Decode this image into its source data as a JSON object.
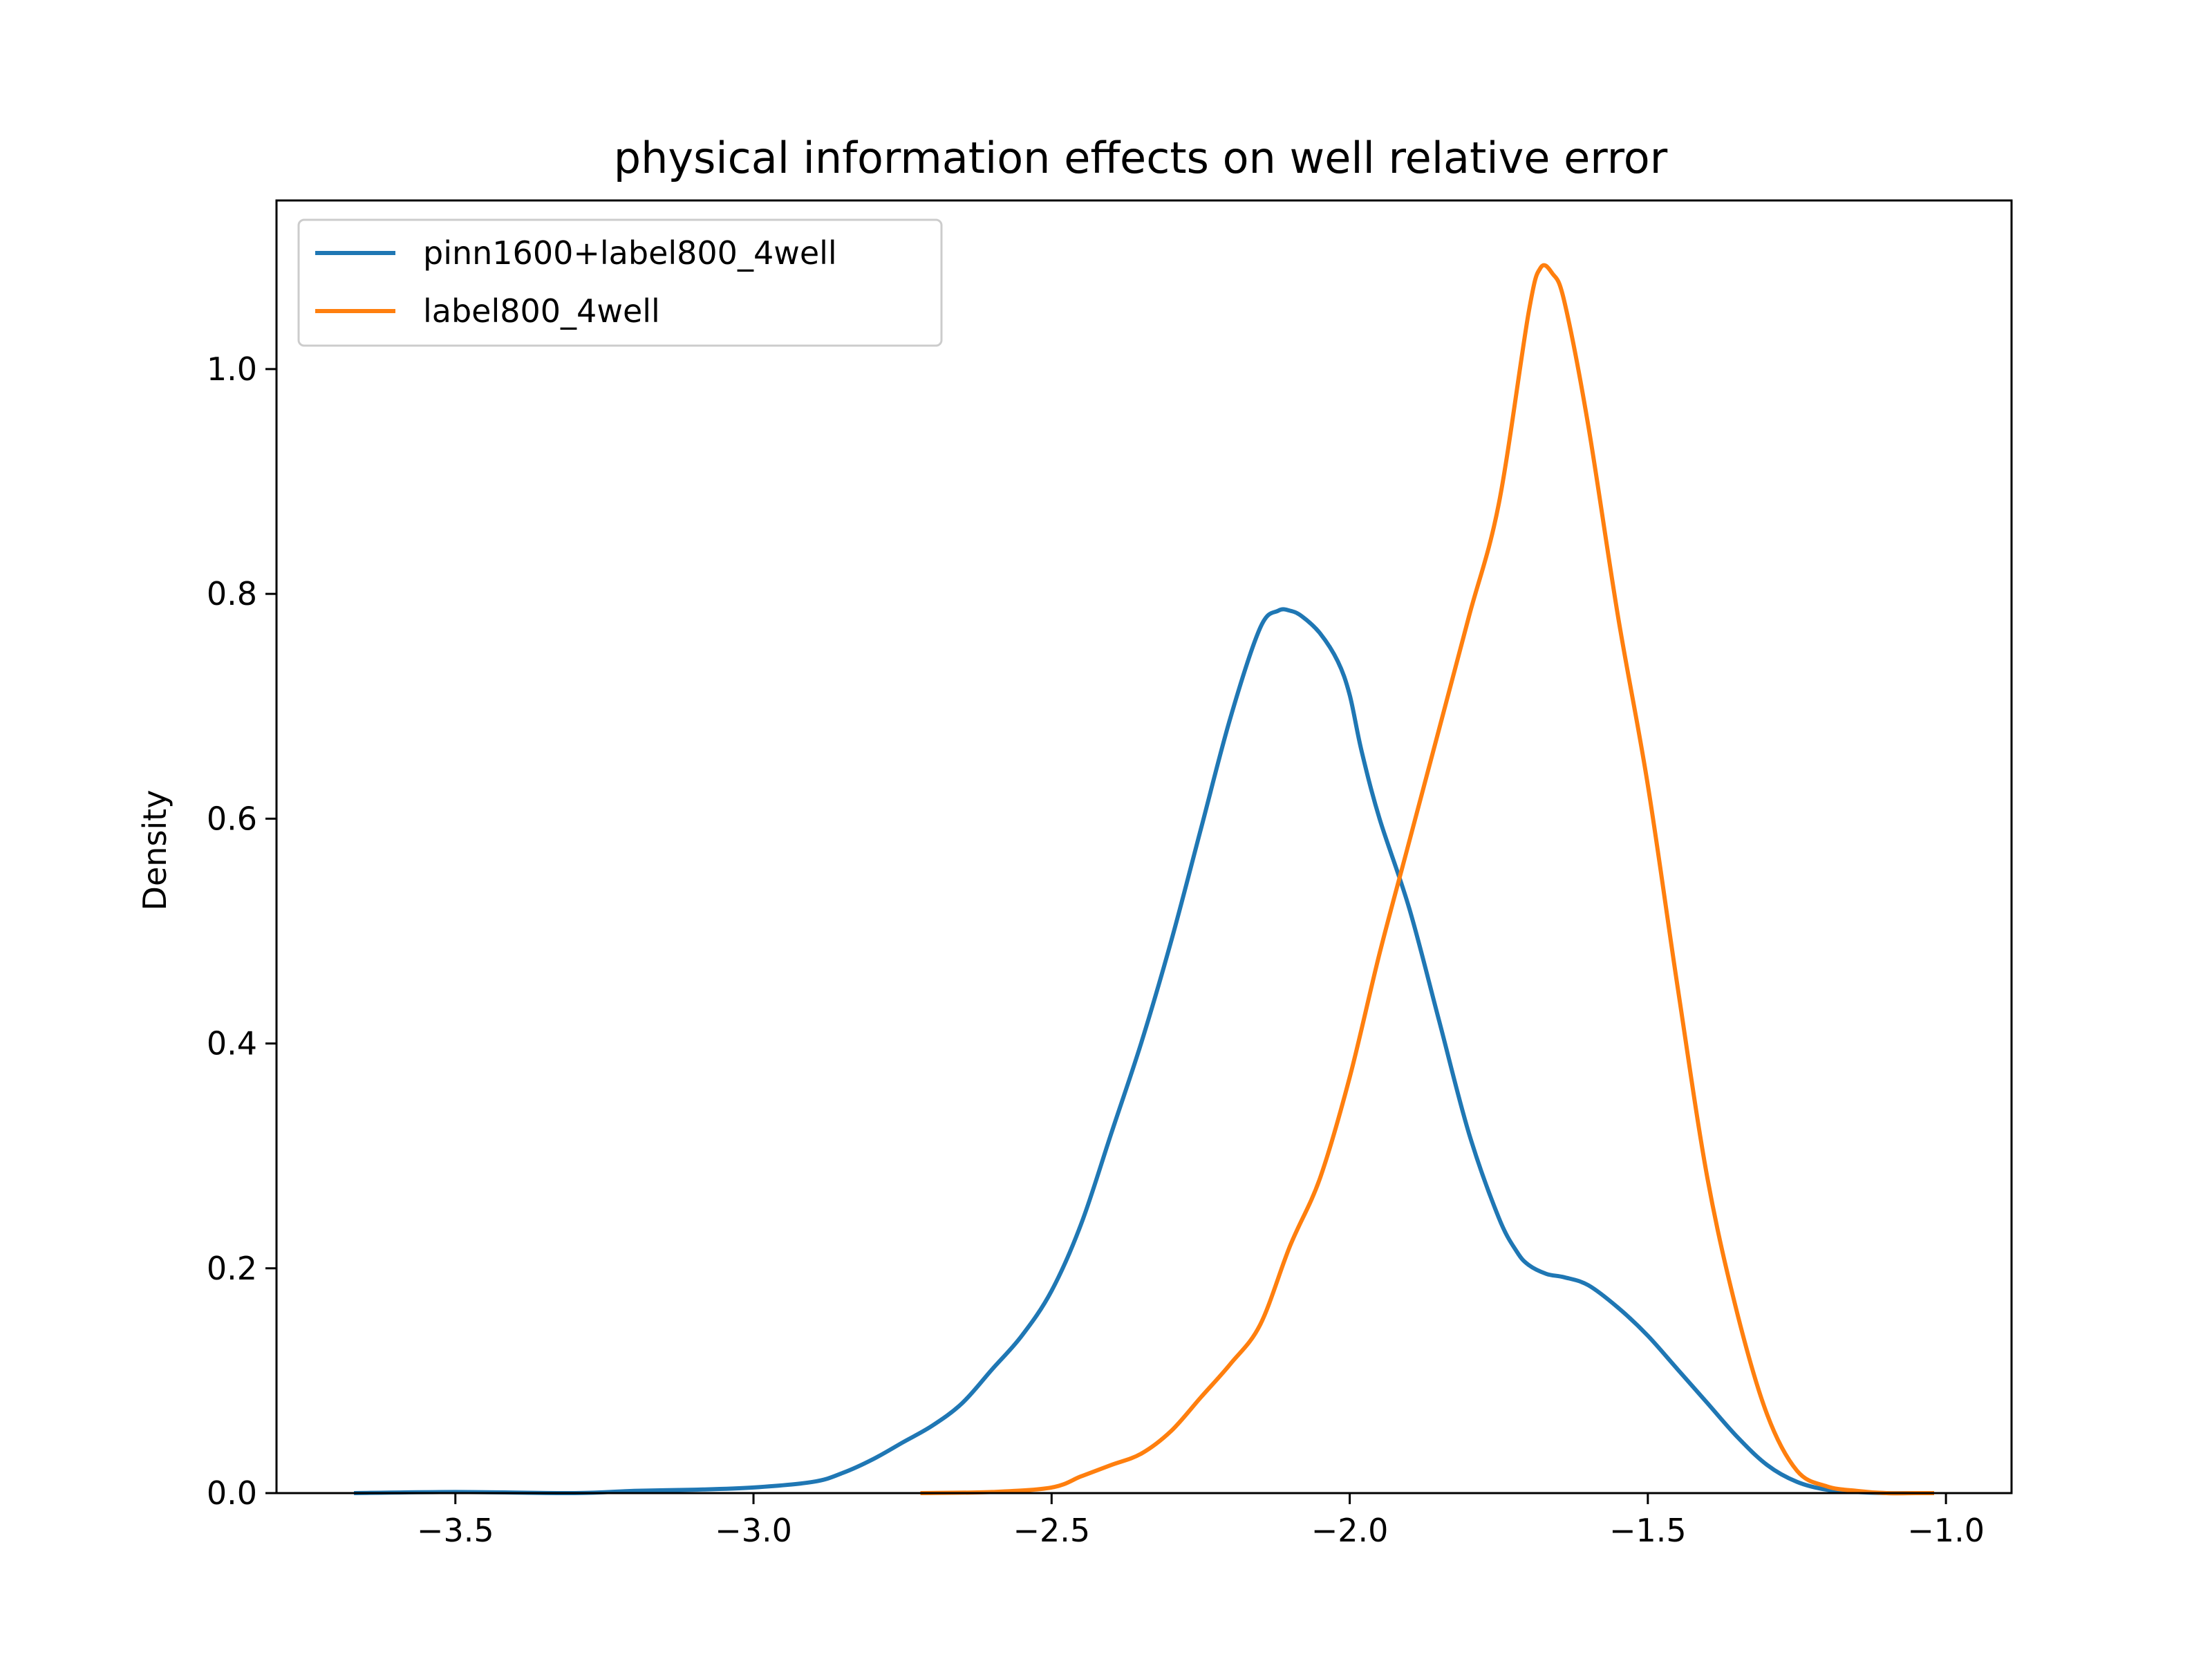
{
  "chart_data": {
    "type": "line",
    "title": "physical information effects on well relative error",
    "xlabel": "",
    "ylabel": "Density",
    "xlim": [
      -3.8,
      -0.89
    ],
    "ylim": [
      0.0,
      1.15
    ],
    "xticks": [
      -3.5,
      -3.0,
      -2.5,
      -2.0,
      -1.5,
      -1.0
    ],
    "xtick_labels": [
      "−3.5",
      "−3.0",
      "−2.5",
      "−2.0",
      "−1.5",
      "−1.0"
    ],
    "yticks": [
      0.0,
      0.2,
      0.4,
      0.6,
      0.8,
      1.0
    ],
    "ytick_labels": [
      "0.0",
      "0.2",
      "0.4",
      "0.6",
      "0.8",
      "1.0"
    ],
    "grid": false,
    "legend_position": "top-left",
    "series": [
      {
        "name": "pinn1600+label800_4well",
        "color": "#1f77b4",
        "x": [
          -3.67,
          -3.5,
          -3.3,
          -3.2,
          -3.1,
          -3.0,
          -2.9,
          -2.85,
          -2.8,
          -2.75,
          -2.7,
          -2.65,
          -2.6,
          -2.55,
          -2.5,
          -2.45,
          -2.4,
          -2.35,
          -2.3,
          -2.25,
          -2.2,
          -2.15,
          -2.12,
          -2.1,
          -2.08,
          -2.05,
          -2.02,
          -2.0,
          -1.98,
          -1.95,
          -1.9,
          -1.85,
          -1.8,
          -1.75,
          -1.72,
          -1.7,
          -1.67,
          -1.64,
          -1.6,
          -1.55,
          -1.5,
          -1.45,
          -1.4,
          -1.35,
          -1.3,
          -1.25,
          -1.2,
          -1.15,
          -1.1,
          -1.05,
          -1.02
        ],
        "y": [
          0.0,
          0.001,
          0.0,
          0.002,
          0.003,
          0.005,
          0.01,
          0.018,
          0.03,
          0.045,
          0.06,
          0.08,
          0.11,
          0.14,
          0.18,
          0.24,
          0.32,
          0.4,
          0.49,
          0.59,
          0.69,
          0.77,
          0.785,
          0.785,
          0.78,
          0.765,
          0.74,
          0.71,
          0.66,
          0.6,
          0.52,
          0.42,
          0.32,
          0.245,
          0.215,
          0.203,
          0.195,
          0.192,
          0.185,
          0.165,
          0.14,
          0.11,
          0.08,
          0.05,
          0.025,
          0.01,
          0.003,
          0.001,
          0.0,
          0.0,
          0.0
        ],
        "peak": {
          "x": -2.09,
          "y": 0.785
        },
        "shoulder": {
          "x": -1.6,
          "y": 0.19
        }
      },
      {
        "name": "label800_4well",
        "color": "#ff7f0e",
        "x": [
          -2.72,
          -2.6,
          -2.5,
          -2.45,
          -2.4,
          -2.35,
          -2.3,
          -2.25,
          -2.2,
          -2.15,
          -2.1,
          -2.05,
          -2.0,
          -1.95,
          -1.9,
          -1.85,
          -1.8,
          -1.75,
          -1.7,
          -1.68,
          -1.66,
          -1.64,
          -1.6,
          -1.55,
          -1.5,
          -1.45,
          -1.4,
          -1.35,
          -1.3,
          -1.25,
          -1.2,
          -1.15,
          -1.1,
          -1.05,
          -1.02
        ],
        "y": [
          0.0,
          0.001,
          0.005,
          0.015,
          0.025,
          0.035,
          0.055,
          0.085,
          0.115,
          0.15,
          0.22,
          0.28,
          0.37,
          0.48,
          0.58,
          0.68,
          0.78,
          0.88,
          1.05,
          1.09,
          1.085,
          1.06,
          0.95,
          0.78,
          0.63,
          0.45,
          0.28,
          0.16,
          0.07,
          0.02,
          0.006,
          0.002,
          0.0,
          0.0,
          0.0
        ],
        "peak": {
          "x": -1.67,
          "y": 1.09
        }
      }
    ]
  }
}
